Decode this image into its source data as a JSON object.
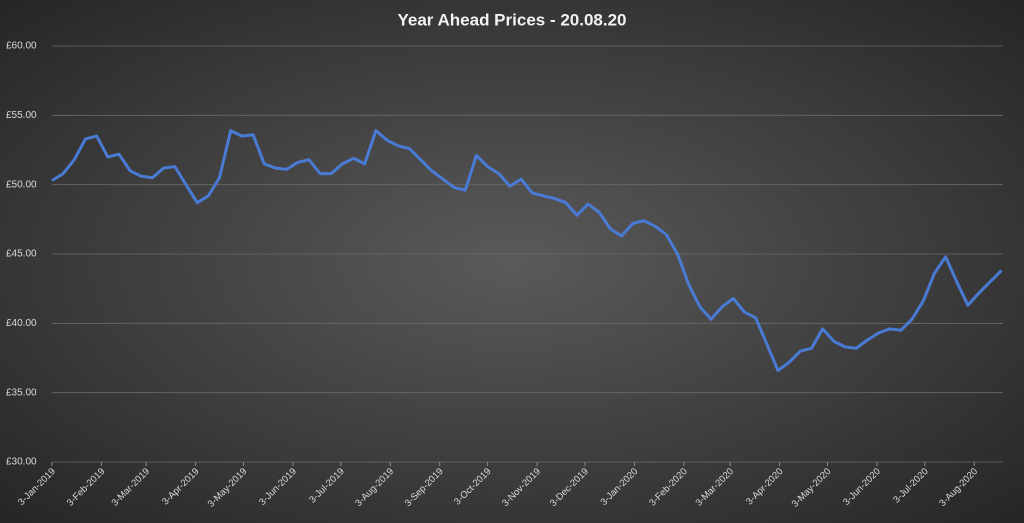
{
  "chart_data": {
    "type": "line",
    "title": "Year Ahead Prices - 20.08.20",
    "x": [
      "2019-01-03",
      "2019-01-10",
      "2019-01-17",
      "2019-01-24",
      "2019-01-31",
      "2019-02-07",
      "2019-02-14",
      "2019-02-21",
      "2019-02-28",
      "2019-03-07",
      "2019-03-14",
      "2019-03-21",
      "2019-03-28",
      "2019-04-04",
      "2019-04-11",
      "2019-04-18",
      "2019-04-25",
      "2019-05-02",
      "2019-05-09",
      "2019-05-16",
      "2019-05-23",
      "2019-05-30",
      "2019-06-06",
      "2019-06-13",
      "2019-06-20",
      "2019-06-27",
      "2019-07-04",
      "2019-07-11",
      "2019-07-18",
      "2019-07-25",
      "2019-08-01",
      "2019-08-08",
      "2019-08-15",
      "2019-08-22",
      "2019-08-29",
      "2019-09-05",
      "2019-09-12",
      "2019-09-19",
      "2019-09-26",
      "2019-10-03",
      "2019-10-10",
      "2019-10-17",
      "2019-10-24",
      "2019-10-31",
      "2019-11-07",
      "2019-11-14",
      "2019-11-21",
      "2019-11-28",
      "2019-12-05",
      "2019-12-12",
      "2019-12-19",
      "2019-12-26",
      "2020-01-02",
      "2020-01-09",
      "2020-01-16",
      "2020-01-23",
      "2020-01-30",
      "2020-02-06",
      "2020-02-13",
      "2020-02-20",
      "2020-02-27",
      "2020-03-05",
      "2020-03-12",
      "2020-03-19",
      "2020-03-26",
      "2020-04-02",
      "2020-04-09",
      "2020-04-16",
      "2020-04-23",
      "2020-04-30",
      "2020-05-07",
      "2020-05-14",
      "2020-05-21",
      "2020-05-28",
      "2020-06-04",
      "2020-06-11",
      "2020-06-18",
      "2020-06-25",
      "2020-07-02",
      "2020-07-09",
      "2020-07-16",
      "2020-07-23",
      "2020-07-30",
      "2020-08-06",
      "2020-08-13",
      "2020-08-20"
    ],
    "values": [
      50.3,
      50.8,
      51.8,
      53.3,
      53.5,
      52.0,
      52.2,
      51.0,
      50.6,
      50.5,
      51.2,
      51.3,
      50.0,
      48.7,
      49.2,
      50.5,
      53.9,
      53.5,
      53.6,
      51.5,
      51.2,
      51.1,
      51.6,
      51.8,
      50.8,
      50.8,
      51.5,
      51.9,
      51.5,
      53.9,
      53.2,
      52.8,
      52.6,
      51.8,
      51.0,
      50.4,
      49.8,
      49.6,
      52.1,
      51.3,
      50.8,
      49.9,
      50.4,
      49.4,
      49.2,
      49.0,
      48.7,
      47.8,
      48.6,
      48.0,
      46.8,
      46.3,
      47.2,
      47.4,
      47.0,
      46.4,
      45.0,
      42.8,
      41.2,
      40.3,
      41.2,
      41.8,
      40.8,
      40.4,
      38.5,
      36.6,
      37.2,
      38.0,
      38.2,
      39.6,
      38.7,
      38.3,
      38.2,
      38.8,
      39.3,
      39.6,
      39.5,
      40.3,
      41.6,
      43.6,
      44.8,
      43.0,
      41.3,
      42.2,
      43.0,
      43.8
    ],
    "color": "#4a7bd4",
    "xlim": [
      "2019-01-03",
      "2020-08-21"
    ],
    "xticks": [
      {
        "value": "2019-01-03",
        "label": "3-Jan-2019"
      },
      {
        "value": "2019-02-03",
        "label": "3-Feb-2019"
      },
      {
        "value": "2019-03-03",
        "label": "3-Mar-2019"
      },
      {
        "value": "2019-04-03",
        "label": "3-Apr-2019"
      },
      {
        "value": "2019-05-03",
        "label": "3-May-2019"
      },
      {
        "value": "2019-06-03",
        "label": "3-Jun-2019"
      },
      {
        "value": "2019-07-03",
        "label": "3-Jul-2019"
      },
      {
        "value": "2019-08-03",
        "label": "3-Aug-2019"
      },
      {
        "value": "2019-09-03",
        "label": "3-Sep-2019"
      },
      {
        "value": "2019-10-03",
        "label": "3-Oct-2019"
      },
      {
        "value": "2019-11-03",
        "label": "3-Nov-2019"
      },
      {
        "value": "2019-12-03",
        "label": "3-Dec-2019"
      },
      {
        "value": "2020-01-03",
        "label": "3-Jan-2020"
      },
      {
        "value": "2020-02-03",
        "label": "3-Feb-2020"
      },
      {
        "value": "2020-03-03",
        "label": "3-Mar-2020"
      },
      {
        "value": "2020-04-03",
        "label": "3-Apr-2020"
      },
      {
        "value": "2020-05-03",
        "label": "3-May-2020"
      },
      {
        "value": "2020-06-03",
        "label": "3-Jun-2020"
      },
      {
        "value": "2020-07-03",
        "label": "3-Jul-2020"
      },
      {
        "value": "2020-08-03",
        "label": "3-Aug-2020"
      }
    ],
    "ylim": [
      30,
      60
    ],
    "yticks": [
      {
        "value": 30,
        "label": "£30.00"
      },
      {
        "value": 35,
        "label": "£35.00"
      },
      {
        "value": 40,
        "label": "£40.00"
      },
      {
        "value": 45,
        "label": "£45.00"
      },
      {
        "value": 50,
        "label": "£50.00"
      },
      {
        "value": 55,
        "label": "£55.00"
      },
      {
        "value": 60,
        "label": "£60.00"
      }
    ],
    "grid": true
  }
}
